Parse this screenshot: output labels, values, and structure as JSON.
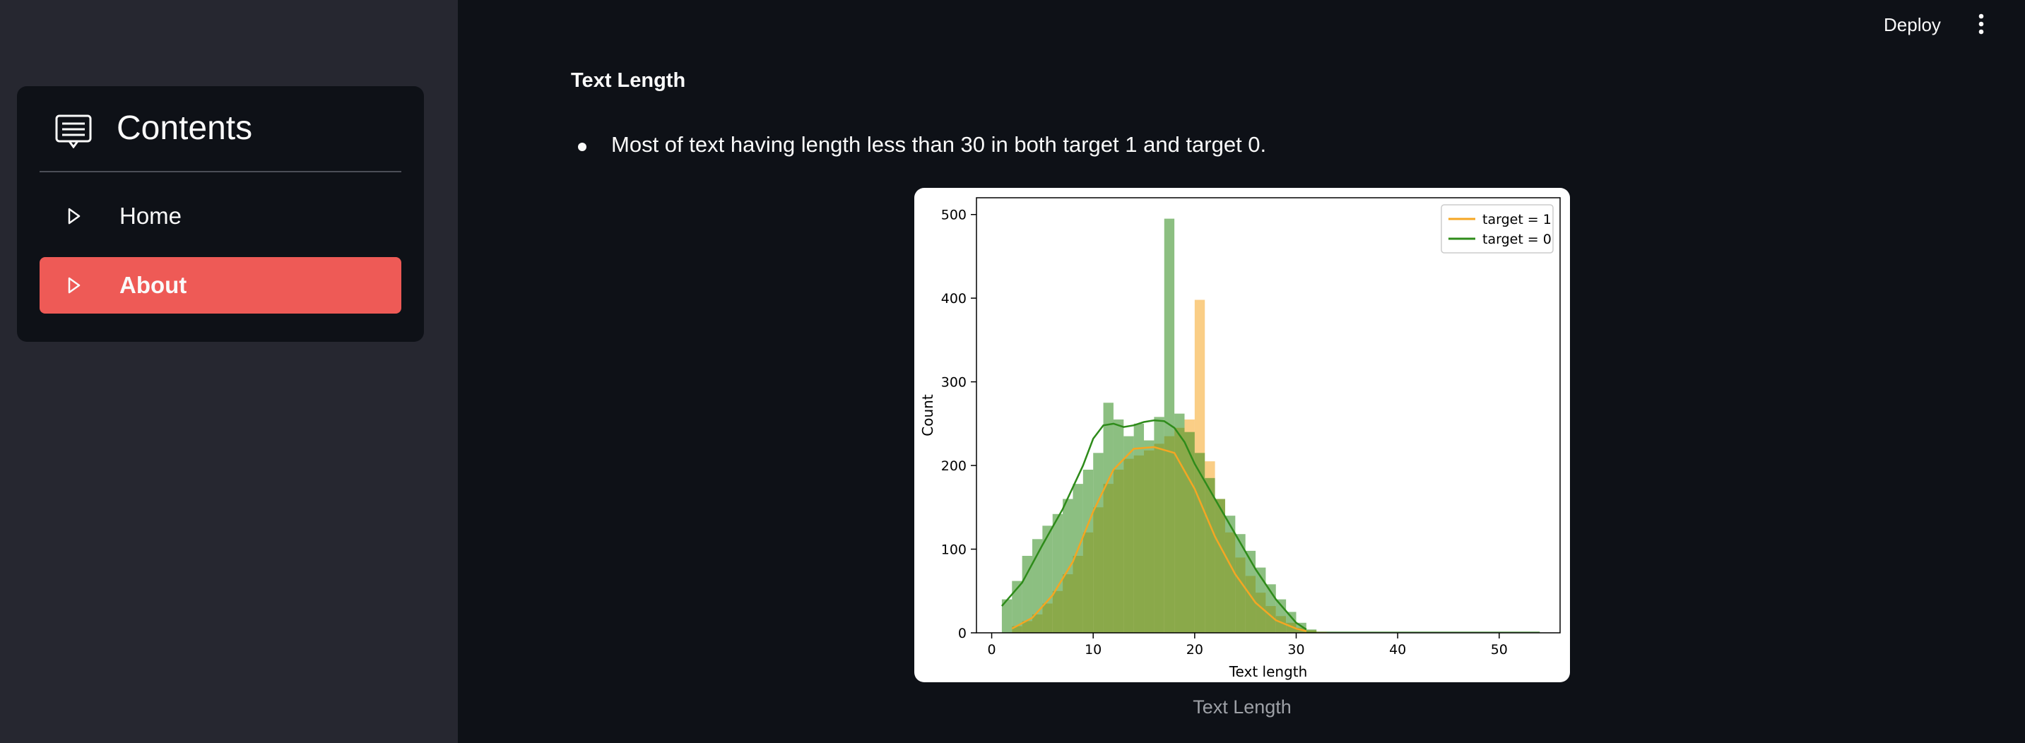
{
  "sidebar": {
    "title": "Contents",
    "header_icon": "menu-list-icon",
    "items": [
      {
        "label": "Home",
        "icon": "play-triangle-icon",
        "active": false
      },
      {
        "label": "About",
        "icon": "play-triangle-icon",
        "active": true
      }
    ],
    "accent_color": "#ee5a56"
  },
  "toolbar": {
    "deploy_label": "Deploy",
    "menu_icon": "kebab-menu-icon"
  },
  "main": {
    "heading": "Text Length",
    "bullet": "Most of text having length less than 30 in both target 1 and target 0.",
    "caption": "Text Length"
  },
  "chart_data": {
    "type": "histogram",
    "xlabel": "Text length",
    "ylabel": "Count",
    "xlim": [
      -1.5,
      56
    ],
    "ylim": [
      0,
      520
    ],
    "xticks": [
      0,
      10,
      20,
      30,
      40,
      50
    ],
    "yticks": [
      0,
      100,
      200,
      300,
      400,
      500
    ],
    "bin_width": 1,
    "legend": {
      "placement": "upper-right"
    },
    "series": [
      {
        "name": "target = 1",
        "color": "#f5a623",
        "bins_start": 2,
        "counts": [
          8,
          14,
          22,
          35,
          50,
          70,
          92,
          120,
          150,
          178,
          195,
          208,
          212,
          218,
          226,
          235,
          245,
          255,
          398,
          205,
          160,
          120,
          90,
          68,
          48,
          32,
          20,
          12,
          6,
          3,
          1
        ],
        "kde_x": [
          2,
          4,
          6,
          8,
          10,
          12,
          14,
          16,
          18,
          20,
          22,
          24,
          26,
          28,
          30,
          31
        ],
        "kde_y": [
          5,
          18,
          45,
          85,
          145,
          195,
          220,
          222,
          215,
          172,
          115,
          70,
          36,
          15,
          5,
          2
        ]
      },
      {
        "name": "target = 0",
        "color": "#2e8b1a",
        "bins_start": 1,
        "counts": [
          40,
          62,
          92,
          112,
          128,
          142,
          160,
          178,
          195,
          215,
          275,
          255,
          235,
          250,
          230,
          258,
          495,
          262,
          240,
          215,
          185,
          160,
          140,
          118,
          98,
          78,
          58,
          40,
          25,
          12,
          4
        ],
        "kde_x": [
          1,
          3,
          5,
          7,
          9,
          10,
          11,
          12,
          13,
          14,
          15,
          16,
          17,
          18,
          19,
          20,
          22,
          24,
          26,
          28,
          30,
          31
        ],
        "kde_y": [
          32,
          60,
          105,
          148,
          200,
          232,
          248,
          250,
          246,
          248,
          252,
          254,
          253,
          245,
          228,
          202,
          160,
          118,
          76,
          40,
          12,
          4
        ]
      }
    ]
  }
}
